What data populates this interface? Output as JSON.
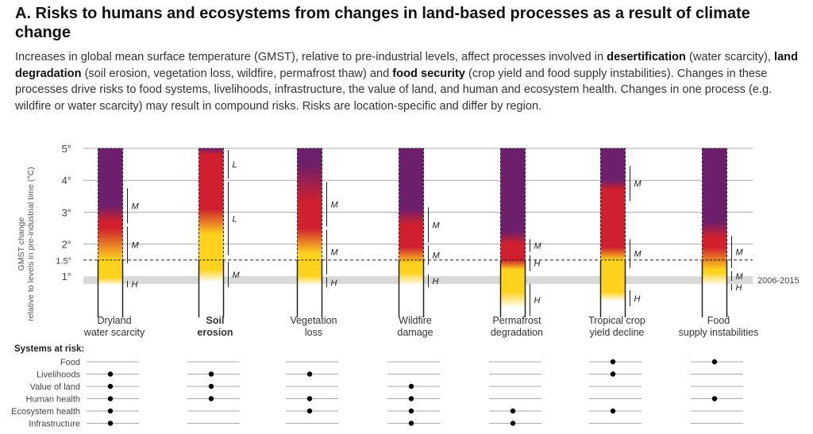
{
  "header": {
    "title": "A. Risks to humans and ecosystems from changes in land-based processes as a result of climate change",
    "intro": [
      {
        "t": "Increases in global mean surface temperature (GMST), relative to pre-industrial levels, affect processes involved in "
      },
      {
        "t": "desertification",
        "b": true
      },
      {
        "t": " (water scarcity), "
      },
      {
        "t": "land degradation",
        "b": true
      },
      {
        "t": " (soil erosion, vegetation loss, wildfire, permafrost thaw) and "
      },
      {
        "t": "food security",
        "b": true
      },
      {
        "t": " (crop yield and food supply instabilities). Changes in these processes drive risks to food systems, livelihoods, infrastructure, the value of land, and human and ecosystem health. Changes in one process (e.g. wildfire or water scarcity) may result in compound risks. Risks are location-specific and differ by region."
      }
    ]
  },
  "chart_data": {
    "type": "risk-transition-bars",
    "ylabel_line1": "GMST change",
    "ylabel_line2": "relative to levels in pre-industrial time (°C)",
    "yticks": [
      "1°",
      "1.5°",
      "2°",
      "3°",
      "4°",
      "5°"
    ],
    "ylim": [
      -0.3,
      5
    ],
    "band_label": "2006-2015",
    "band_range": [
      0.75,
      0.99
    ],
    "dashed_line_at": 1.5,
    "colors": {
      "undetectable": "#ffffff",
      "moderate": "#ffd21e",
      "high": "#d0202e",
      "very_high": "#6e1f6b",
      "band": "#d9d9d9",
      "grid": "#aaaaaa"
    },
    "processes": [
      {
        "label_lines": [
          "Dryland",
          "water scarcity"
        ],
        "bold": false,
        "transitions": [
          {
            "from": 0.7,
            "to": 0.95,
            "c": "moderate"
          },
          {
            "from": 1.5,
            "to": 2.5,
            "c": "high"
          },
          {
            "from": 2.7,
            "to": 3.2,
            "c": "very_high"
          }
        ],
        "confidence": [
          {
            "from": 2.6,
            "to": 3.8,
            "label": "M"
          },
          {
            "from": 1.35,
            "to": 2.6,
            "label": "M"
          },
          {
            "from": 0.6,
            "to": 0.9,
            "label": "H"
          }
        ]
      },
      {
        "label_lines": [
          "Soil",
          "erosion"
        ],
        "bold": true,
        "transitions": [
          {
            "from": 0.8,
            "to": 1.2,
            "c": "moderate"
          },
          {
            "from": 2.3,
            "to": 3.1,
            "c": "high"
          },
          {
            "from": 4.8,
            "to": 5.0,
            "c": "very_high"
          }
        ],
        "confidence": [
          {
            "from": 4.0,
            "to": 5.0,
            "label": "L"
          },
          {
            "from": 1.6,
            "to": 4.0,
            "label": "L"
          },
          {
            "from": 0.6,
            "to": 1.5,
            "label": "M"
          }
        ]
      },
      {
        "label_lines": [
          "Vegetation",
          "loss"
        ],
        "bold": false,
        "transitions": [
          {
            "from": 0.7,
            "to": 1.0,
            "c": "moderate"
          },
          {
            "from": 1.7,
            "to": 2.5,
            "c": "high"
          },
          {
            "from": 3.3,
            "to": 4.5,
            "c": "very_high"
          }
        ],
        "confidence": [
          {
            "from": 2.5,
            "to": 4.0,
            "label": "M"
          },
          {
            "from": 1.0,
            "to": 2.5,
            "label": "M"
          },
          {
            "from": 0.6,
            "to": 1.0,
            "label": "H"
          }
        ]
      },
      {
        "label_lines": [
          "Wildfire",
          "damage"
        ],
        "bold": false,
        "transitions": [
          {
            "from": 0.7,
            "to": 1.1,
            "c": "moderate"
          },
          {
            "from": 1.4,
            "to": 1.9,
            "c": "high"
          },
          {
            "from": 2.6,
            "to": 3.1,
            "c": "very_high"
          }
        ],
        "confidence": [
          {
            "from": 2.0,
            "to": 3.2,
            "label": "M"
          },
          {
            "from": 1.3,
            "to": 2.0,
            "label": "M"
          },
          {
            "from": 0.6,
            "to": 1.1,
            "label": "H"
          }
        ]
      },
      {
        "label_lines": [
          "Permafrost",
          "degradation"
        ],
        "bold": false,
        "transitions": [
          {
            "from": 0.0,
            "to": 0.5,
            "c": "moderate"
          },
          {
            "from": 1.2,
            "to": 1.5,
            "c": "high"
          },
          {
            "from": 2.0,
            "to": 2.4,
            "c": "very_high"
          }
        ],
        "confidence": [
          {
            "from": 1.7,
            "to": 2.2,
            "label": "M"
          },
          {
            "from": 1.1,
            "to": 1.7,
            "label": "H"
          },
          {
            "from": -0.3,
            "to": 0.8,
            "label": "H"
          }
        ]
      },
      {
        "label_lines": [
          "Tropical crop",
          "yield decline"
        ],
        "bold": false,
        "transitions": [
          {
            "from": 0.2,
            "to": 0.5,
            "c": "moderate"
          },
          {
            "from": 1.5,
            "to": 1.9,
            "c": "high"
          },
          {
            "from": 3.7,
            "to": 4.0,
            "c": "very_high"
          }
        ],
        "confidence": [
          {
            "from": 3.3,
            "to": 4.5,
            "label": "M"
          },
          {
            "from": 1.2,
            "to": 2.2,
            "label": "M"
          },
          {
            "from": 0.0,
            "to": 0.6,
            "label": "H"
          }
        ]
      },
      {
        "label_lines": [
          "Food",
          "supply instabilities"
        ],
        "bold": false,
        "transitions": [
          {
            "from": 0.7,
            "to": 1.1,
            "c": "moderate"
          },
          {
            "from": 1.2,
            "to": 1.9,
            "c": "high"
          },
          {
            "from": 2.2,
            "to": 2.7,
            "c": "very_high"
          }
        ],
        "confidence": [
          {
            "from": 1.2,
            "to": 2.3,
            "label": "M"
          },
          {
            "from": 0.8,
            "to": 1.2,
            "label": "M"
          },
          {
            "from": 0.5,
            "to": 0.8,
            "label": "H"
          }
        ]
      }
    ],
    "systems_title": "Systems at risk:",
    "systems": [
      "Food",
      "Livelihoods",
      "Value of land",
      "Human health",
      "Ecosystem health",
      "Infrastructure"
    ],
    "systems_at_risk": [
      [
        "Livelihoods",
        "Value of land",
        "Human health",
        "Ecosystem health",
        "Infrastructure"
      ],
      [
        "Livelihoods",
        "Value of land",
        "Human health"
      ],
      [
        "Livelihoods",
        "Human health",
        "Ecosystem health"
      ],
      [
        "Value of land",
        "Human health",
        "Ecosystem health",
        "Infrastructure"
      ],
      [
        "Ecosystem health",
        "Infrastructure"
      ],
      [
        "Food",
        "Livelihoods",
        "Ecosystem health"
      ],
      [
        "Food",
        "Human health"
      ]
    ]
  }
}
